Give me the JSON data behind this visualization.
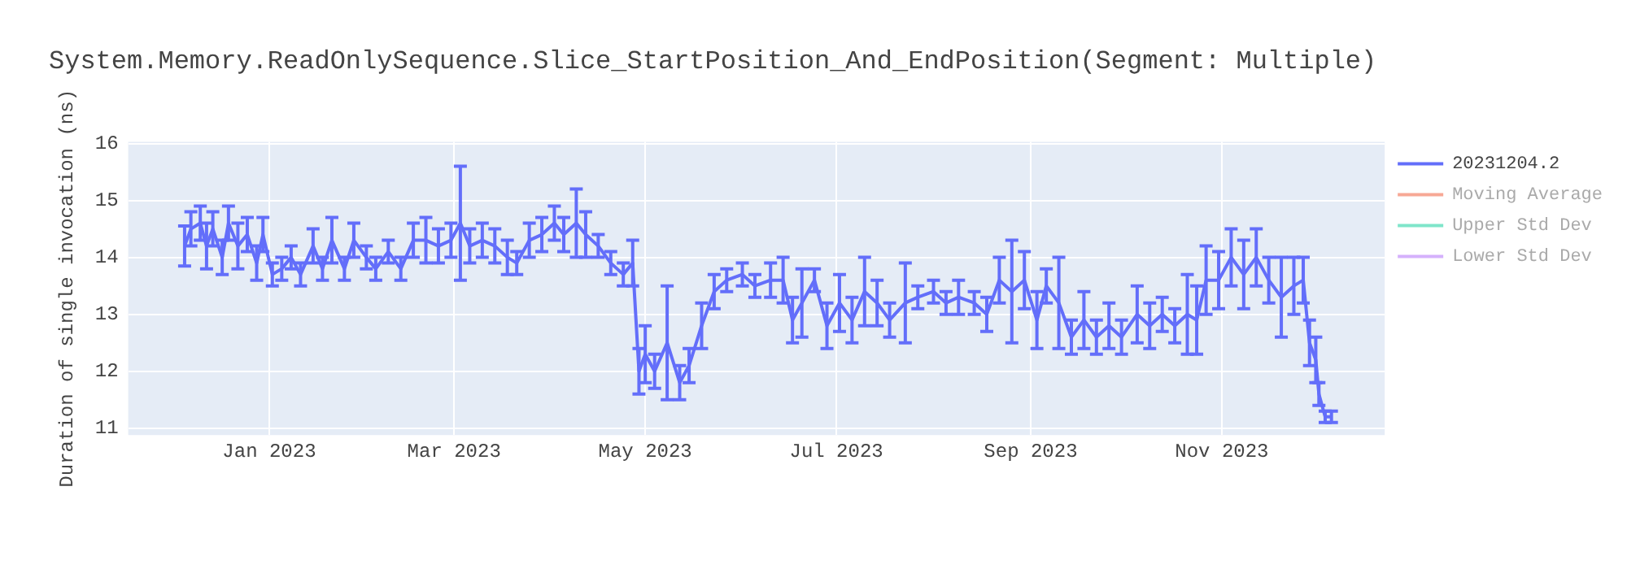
{
  "chart_data": {
    "type": "line",
    "title": "System.Memory.ReadOnlySequence.Slice_StartPosition_And_EndPosition(Segment: Multiple)",
    "ylabel": "Duration of single invocation (ns)",
    "x": [
      "2022-12-05",
      "2022-12-07",
      "2022-12-10",
      "2022-12-12",
      "2022-12-14",
      "2022-12-17",
      "2022-12-19",
      "2022-12-22",
      "2022-12-25",
      "2022-12-28",
      "2022-12-30",
      "2023-01-02",
      "2023-01-05",
      "2023-01-08",
      "2023-01-11",
      "2023-01-15",
      "2023-01-18",
      "2023-01-21",
      "2023-01-25",
      "2023-01-28",
      "2023-02-01",
      "2023-02-04",
      "2023-02-08",
      "2023-02-12",
      "2023-02-16",
      "2023-02-20",
      "2023-02-24",
      "2023-02-28",
      "2023-03-03",
      "2023-03-06",
      "2023-03-10",
      "2023-03-14",
      "2023-03-18",
      "2023-03-21",
      "2023-03-25",
      "2023-03-29",
      "2023-04-02",
      "2023-04-05",
      "2023-04-09",
      "2023-04-12",
      "2023-04-16",
      "2023-04-20",
      "2023-04-24",
      "2023-04-27",
      "2023-04-29",
      "2023-05-01",
      "2023-05-04",
      "2023-05-08",
      "2023-05-12",
      "2023-05-15",
      "2023-05-19",
      "2023-05-23",
      "2023-05-27",
      "2023-06-01",
      "2023-06-05",
      "2023-06-10",
      "2023-06-14",
      "2023-06-17",
      "2023-06-20",
      "2023-06-24",
      "2023-06-28",
      "2023-07-02",
      "2023-07-06",
      "2023-07-10",
      "2023-07-14",
      "2023-07-18",
      "2023-07-23",
      "2023-07-27",
      "2023-08-01",
      "2023-08-05",
      "2023-08-09",
      "2023-08-14",
      "2023-08-18",
      "2023-08-22",
      "2023-08-26",
      "2023-08-30",
      "2023-09-03",
      "2023-09-06",
      "2023-09-10",
      "2023-09-14",
      "2023-09-18",
      "2023-09-22",
      "2023-09-26",
      "2023-09-30",
      "2023-10-05",
      "2023-10-09",
      "2023-10-13",
      "2023-10-17",
      "2023-10-21",
      "2023-10-24",
      "2023-10-27",
      "2023-10-31",
      "2023-11-04",
      "2023-11-08",
      "2023-11-12",
      "2023-11-16",
      "2023-11-20",
      "2023-11-24",
      "2023-11-27",
      "2023-11-29",
      "2023-12-01",
      "2023-12-02",
      "2023-12-04",
      "2023-12-06"
    ],
    "series": [
      {
        "name": "20231204.2",
        "color": "#636efa",
        "values": [
          14.2,
          14.5,
          14.6,
          14.2,
          14.5,
          14.0,
          14.6,
          14.2,
          14.4,
          13.9,
          14.4,
          13.7,
          13.8,
          14.0,
          13.7,
          14.2,
          13.8,
          14.3,
          13.8,
          14.3,
          14.0,
          13.8,
          14.1,
          13.8,
          14.3,
          14.3,
          14.2,
          14.3,
          14.6,
          14.2,
          14.3,
          14.2,
          14.0,
          13.9,
          14.3,
          14.4,
          14.6,
          14.4,
          14.6,
          14.4,
          14.2,
          13.9,
          13.7,
          13.9,
          12.0,
          12.3,
          12.0,
          12.5,
          11.8,
          12.1,
          12.8,
          13.4,
          13.6,
          13.7,
          13.5,
          13.6,
          13.6,
          12.9,
          13.2,
          13.6,
          12.8,
          13.2,
          12.9,
          13.4,
          13.2,
          12.9,
          13.2,
          13.3,
          13.4,
          13.2,
          13.3,
          13.2,
          13.0,
          13.6,
          13.4,
          13.6,
          12.9,
          13.5,
          13.2,
          12.6,
          12.9,
          12.6,
          12.8,
          12.6,
          13.0,
          12.8,
          13.0,
          12.8,
          13.0,
          12.9,
          13.6,
          13.6,
          14.0,
          13.7,
          14.0,
          13.6,
          13.3,
          13.5,
          13.6,
          12.5,
          12.2,
          11.6,
          11.2,
          11.2
        ],
        "errors": [
          0.35,
          0.3,
          0.3,
          0.4,
          0.3,
          0.3,
          0.3,
          0.4,
          0.3,
          0.3,
          0.3,
          0.2,
          0.2,
          0.2,
          0.2,
          0.3,
          0.2,
          0.4,
          0.2,
          0.3,
          0.2,
          0.2,
          0.2,
          0.2,
          0.3,
          0.4,
          0.3,
          0.3,
          1.0,
          0.3,
          0.3,
          0.3,
          0.3,
          0.2,
          0.3,
          0.3,
          0.3,
          0.3,
          0.6,
          0.4,
          0.2,
          0.2,
          0.2,
          0.4,
          0.4,
          0.5,
          0.3,
          1.0,
          0.3,
          0.3,
          0.4,
          0.3,
          0.2,
          0.2,
          0.2,
          0.3,
          0.4,
          0.4,
          0.6,
          0.2,
          0.4,
          0.5,
          0.4,
          0.6,
          0.4,
          0.3,
          0.7,
          0.2,
          0.2,
          0.2,
          0.3,
          0.2,
          0.3,
          0.4,
          0.9,
          0.5,
          0.5,
          0.3,
          0.8,
          0.3,
          0.5,
          0.3,
          0.4,
          0.3,
          0.5,
          0.4,
          0.3,
          0.3,
          0.7,
          0.6,
          0.6,
          0.5,
          0.5,
          0.6,
          0.5,
          0.4,
          0.7,
          0.5,
          0.4,
          0.4,
          0.4,
          0.2,
          0.1,
          0.1
        ]
      },
      {
        "name": "Moving Average",
        "color": "#f7a895",
        "values": [
          null,
          null,
          null,
          null,
          null,
          null,
          null,
          null,
          null,
          null,
          null,
          null,
          null,
          null,
          null,
          null,
          null,
          null,
          null,
          null,
          null,
          null,
          null,
          null,
          null,
          null,
          null,
          null,
          null,
          null,
          null,
          null,
          null,
          null,
          null,
          null,
          null,
          null,
          null,
          null,
          null,
          null,
          null,
          null,
          null,
          null,
          null,
          null,
          null,
          null,
          null,
          null,
          null,
          null,
          null,
          null,
          null,
          null,
          null,
          null,
          null,
          null,
          null,
          null,
          null,
          null,
          null,
          null,
          null,
          null,
          null,
          null,
          null,
          null,
          null,
          null,
          null,
          null,
          null,
          null,
          null,
          null,
          null,
          null,
          null,
          null,
          null,
          null,
          null,
          null,
          null,
          null,
          null,
          null,
          null,
          null,
          null,
          null,
          null,
          null,
          null,
          null,
          null,
          null
        ]
      },
      {
        "name": "Upper Std Dev",
        "color": "#7fe5ca",
        "values": [
          null,
          null,
          null,
          null,
          null,
          null,
          null,
          null,
          null,
          null,
          null,
          null,
          null,
          null,
          null,
          null,
          null,
          null,
          null,
          null,
          null,
          null,
          null,
          null,
          null,
          null,
          null,
          null,
          null,
          null,
          null,
          null,
          null,
          null,
          null,
          null,
          null,
          null,
          null,
          null,
          null,
          null,
          null,
          null,
          null,
          null,
          null,
          null,
          null,
          null,
          null,
          null,
          null,
          null,
          null,
          null,
          null,
          null,
          null,
          null,
          null,
          null,
          null,
          null,
          null,
          null,
          null,
          null,
          null,
          null,
          null,
          null,
          null,
          null,
          null,
          null,
          null,
          null,
          null,
          null,
          null,
          null,
          null,
          null,
          null,
          null,
          null,
          null,
          null,
          null,
          null,
          null,
          null,
          null,
          null,
          null,
          null,
          null,
          null,
          null,
          null,
          null,
          null,
          null
        ]
      },
      {
        "name": "Lower Std Dev",
        "color": "#d5b1fc",
        "values": [
          null,
          null,
          null,
          null,
          null,
          null,
          null,
          null,
          null,
          null,
          null,
          null,
          null,
          null,
          null,
          null,
          null,
          null,
          null,
          null,
          null,
          null,
          null,
          null,
          null,
          null,
          null,
          null,
          null,
          null,
          null,
          null,
          null,
          null,
          null,
          null,
          null,
          null,
          null,
          null,
          null,
          null,
          null,
          null,
          null,
          null,
          null,
          null,
          null,
          null,
          null,
          null,
          null,
          null,
          null,
          null,
          null,
          null,
          null,
          null,
          null,
          null,
          null,
          null,
          null,
          null,
          null,
          null,
          null,
          null,
          null,
          null,
          null,
          null,
          null,
          null,
          null,
          null,
          null,
          null,
          null,
          null,
          null,
          null,
          null,
          null,
          null,
          null,
          null,
          null,
          null,
          null,
          null,
          null,
          null,
          null,
          null,
          null,
          null,
          null,
          null,
          null,
          null,
          null
        ]
      }
    ],
    "xlim": [
      "2022-11-17",
      "2023-12-23"
    ],
    "xticks": [
      {
        "value": "2023-01-01",
        "label": "Jan 2023"
      },
      {
        "value": "2023-03-01",
        "label": "Mar 2023"
      },
      {
        "value": "2023-05-01",
        "label": "May 2023"
      },
      {
        "value": "2023-07-01",
        "label": "Jul 2023"
      },
      {
        "value": "2023-09-01",
        "label": "Sep 2023"
      },
      {
        "value": "2023-11-01",
        "label": "Nov 2023"
      }
    ],
    "ylim": [
      10.88,
      16.03
    ],
    "yticks": [
      11,
      12,
      13,
      14,
      15,
      16
    ],
    "grid": true,
    "legend": "top right",
    "marker": "none",
    "line_style": "solid"
  }
}
